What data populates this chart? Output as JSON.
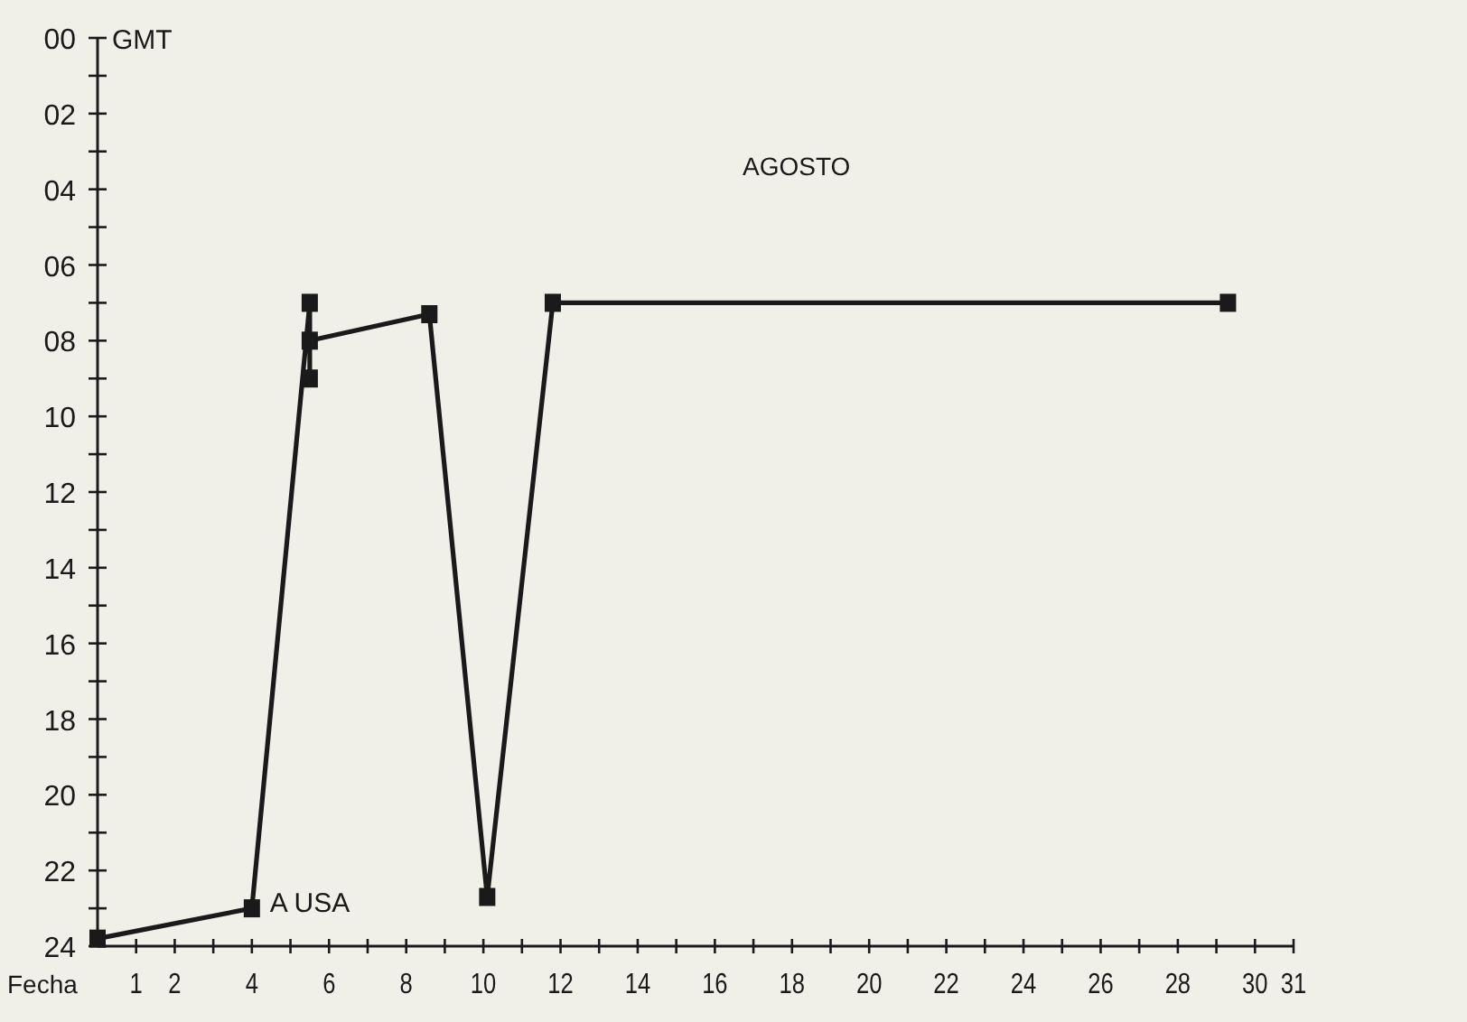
{
  "chart_data": {
    "type": "line",
    "xlabel": "Fecha",
    "ylabel": "GMT",
    "x": [
      0,
      4,
      5.5,
      5.5,
      5.5,
      8.6,
      10.1,
      11.8,
      29.3
    ],
    "series": [
      {
        "color": "#1a1a1a",
        "values": [
          23.8,
          23,
          7,
          9,
          8,
          7.3,
          22.7,
          7,
          7
        ]
      }
    ],
    "xlim": [
      0,
      31
    ],
    "xticks": [
      {
        "value": 1,
        "label": "1"
      },
      {
        "value": 2,
        "label": "2"
      },
      {
        "value": 3,
        "label": null
      },
      {
        "value": 4,
        "label": "4"
      },
      {
        "value": 5,
        "label": null
      },
      {
        "value": 6,
        "label": "6"
      },
      {
        "value": 7,
        "label": null
      },
      {
        "value": 8,
        "label": "8"
      },
      {
        "value": 9,
        "label": null
      },
      {
        "value": 10,
        "label": "10"
      },
      {
        "value": 11,
        "label": null
      },
      {
        "value": 12,
        "label": "12"
      },
      {
        "value": 13,
        "label": null
      },
      {
        "value": 14,
        "label": "14"
      },
      {
        "value": 15,
        "label": null
      },
      {
        "value": 16,
        "label": "16"
      },
      {
        "value": 17,
        "label": null
      },
      {
        "value": 18,
        "label": "18"
      },
      {
        "value": 19,
        "label": null
      },
      {
        "value": 20,
        "label": "20"
      },
      {
        "value": 21,
        "label": null
      },
      {
        "value": 22,
        "label": "22"
      },
      {
        "value": 23,
        "label": null
      },
      {
        "value": 24,
        "label": "24"
      },
      {
        "value": 25,
        "label": null
      },
      {
        "value": 26,
        "label": "26"
      },
      {
        "value": 27,
        "label": null
      },
      {
        "value": 28,
        "label": "28"
      },
      {
        "value": 29,
        "label": null
      },
      {
        "value": 30,
        "label": "30"
      },
      {
        "value": 31,
        "label": "31"
      }
    ],
    "ylim": [
      24,
      0
    ],
    "yticks": [
      {
        "value": 0,
        "label": "00"
      },
      {
        "value": 1,
        "label": null
      },
      {
        "value": 2,
        "label": "02"
      },
      {
        "value": 3,
        "label": null
      },
      {
        "value": 4,
        "label": "04"
      },
      {
        "value": 5,
        "label": null
      },
      {
        "value": 6,
        "label": "06"
      },
      {
        "value": 7,
        "label": null
      },
      {
        "value": 8,
        "label": "08"
      },
      {
        "value": 9,
        "label": null
      },
      {
        "value": 10,
        "label": "10"
      },
      {
        "value": 11,
        "label": null
      },
      {
        "value": 12,
        "label": "12"
      },
      {
        "value": 13,
        "label": null
      },
      {
        "value": 14,
        "label": "14"
      },
      {
        "value": 15,
        "label": null
      },
      {
        "value": 16,
        "label": "16"
      },
      {
        "value": 17,
        "label": null
      },
      {
        "value": 18,
        "label": "18"
      },
      {
        "value": 19,
        "label": null
      },
      {
        "value": 20,
        "label": "20"
      },
      {
        "value": 21,
        "label": null
      },
      {
        "value": 22,
        "label": "22"
      },
      {
        "value": 23,
        "label": null
      },
      {
        "value": 24,
        "label": "24"
      }
    ],
    "marker": "square",
    "line_style": "solid",
    "annotations": [
      {
        "text": "A USA",
        "x": 4,
        "y": 23
      },
      "AGOSTO"
    ]
  }
}
